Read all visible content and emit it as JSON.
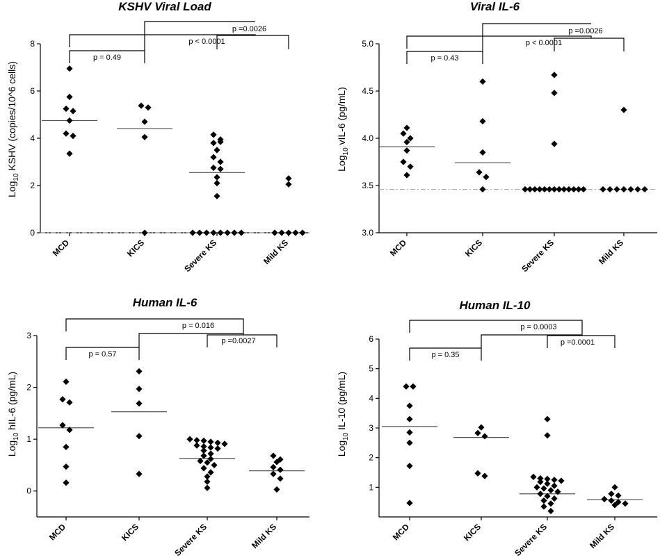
{
  "chart_data": [
    {
      "type": "scatter",
      "title": "KSHV Viral Load",
      "ylabel_main": "Log",
      "ylabel_sub": "10",
      "ylabel_rest": " KSHV (copies/10^6 cells)",
      "ylim": [
        0,
        8
      ],
      "yticks": [
        0,
        2,
        4,
        6,
        8
      ],
      "categories": [
        "MCD",
        "KICS",
        "Severe KS",
        "Mild KS"
      ],
      "points": [
        [
          6.95,
          5.75,
          5.25,
          5.15,
          4.75,
          4.2,
          4.1,
          3.35
        ],
        [
          5.38,
          5.3,
          4.7,
          4.05,
          0
        ],
        [
          4.15,
          3.95,
          3.8,
          3.85,
          3.5,
          3.2,
          3.0,
          2.75,
          2.7,
          2.35,
          2.1,
          1.55,
          0,
          0,
          0,
          0,
          0,
          0,
          0,
          0
        ],
        [
          2.3,
          2.05,
          0,
          0,
          0,
          0,
          0
        ]
      ],
      "medians": [
        4.75,
        4.4,
        2.55,
        null
      ],
      "reference_line": 0,
      "comparisons": [
        {
          "label": "p = 0.49"
        },
        {
          "label": "p < 0.0001"
        },
        {
          "label": "p =0.0026"
        }
      ]
    },
    {
      "type": "scatter",
      "title": "Viral IL-6",
      "ylabel_main": "Log",
      "ylabel_sub": "10",
      "ylabel_rest": " vIL-6 (pg/mL)",
      "ylim": [
        3.0,
        5.0
      ],
      "yticks": [
        3.0,
        3.5,
        4.0,
        4.5,
        5.0
      ],
      "ytick_labels": [
        "3.0",
        "3.5",
        "4.0",
        "4.5",
        "5.0"
      ],
      "categories": [
        "MCD",
        "KICS",
        "Severe KS",
        "Mild KS"
      ],
      "points": [
        [
          4.11,
          4.05,
          4.0,
          3.96,
          3.87,
          3.75,
          3.7,
          3.61
        ],
        [
          4.6,
          4.18,
          3.85,
          3.64,
          3.59,
          3.46
        ],
        [
          4.67,
          4.48,
          3.94,
          3.46,
          3.46,
          3.46,
          3.46,
          3.46,
          3.46,
          3.46,
          3.46,
          3.46,
          3.46,
          3.46,
          3.46,
          3.46
        ],
        [
          4.3,
          3.46,
          3.46,
          3.46,
          3.46,
          3.46,
          3.46,
          3.46
        ]
      ],
      "medians": [
        3.91,
        3.74,
        null,
        null
      ],
      "reference_line": 3.46,
      "comparisons": [
        {
          "label": "p = 0.43"
        },
        {
          "label": "p < 0.0001"
        },
        {
          "label": "p =0.0026"
        }
      ]
    },
    {
      "type": "scatter",
      "title": "Human IL-6",
      "ylabel_main": "Log",
      "ylabel_sub": "10",
      "ylabel_rest": " hIL-6 (pg/mL)",
      "ylim": [
        -0.5,
        3
      ],
      "yticks": [
        0,
        1,
        2,
        3
      ],
      "categories": [
        "MCD",
        "KICS",
        "Severe KS",
        "Mild KS"
      ],
      "points": [
        [
          2.11,
          1.77,
          1.71,
          1.27,
          1.18,
          0.85,
          0.47,
          0.16
        ],
        [
          2.31,
          1.97,
          1.69,
          1.06,
          0.33
        ],
        [
          1.0,
          0.98,
          0.97,
          0.95,
          0.93,
          0.91,
          0.88,
          0.86,
          0.84,
          0.82,
          0.78,
          0.72,
          0.68,
          0.62,
          0.58,
          0.55,
          0.5,
          0.44,
          0.36,
          0.28,
          0.18,
          0.06
        ],
        [
          0.68,
          0.61,
          0.56,
          0.46,
          0.41,
          0.33,
          0.24,
          0.03
        ]
      ],
      "medians": [
        1.22,
        1.53,
        0.63,
        0.39
      ],
      "comparisons": [
        {
          "label": "p = 0.57"
        },
        {
          "label": "p = 0.016"
        },
        {
          "label": "p =0.0027"
        }
      ]
    },
    {
      "type": "scatter",
      "title": "Human IL-10",
      "ylabel_main": "Log",
      "ylabel_sub": "10",
      "ylabel_rest": " IL-10 (pg/mL)",
      "ylim": [
        0,
        6
      ],
      "yticks": [
        1,
        2,
        3,
        4,
        5,
        6
      ],
      "categories": [
        "MCD",
        "KICS",
        "Severe KS",
        "Mild KS"
      ],
      "points": [
        [
          4.4,
          4.4,
          3.75,
          3.3,
          2.85,
          2.5,
          1.72,
          0.47
        ],
        [
          3.02,
          2.83,
          2.72,
          1.47,
          1.38
        ],
        [
          3.3,
          2.75,
          1.35,
          1.3,
          1.28,
          1.25,
          1.22,
          1.18,
          1.12,
          1.05,
          1.0,
          0.96,
          0.9,
          0.85,
          0.78,
          0.7,
          0.62,
          0.55,
          0.45,
          0.35,
          0.2
        ],
        [
          1.0,
          0.78,
          0.72,
          0.6,
          0.55,
          0.5,
          0.45,
          0.4
        ]
      ],
      "medians": [
        3.05,
        2.68,
        0.78,
        0.58
      ],
      "comparisons": [
        {
          "label": "p = 0.35"
        },
        {
          "label": "p = 0.0003"
        },
        {
          "label": "p =0.0001"
        }
      ]
    }
  ]
}
